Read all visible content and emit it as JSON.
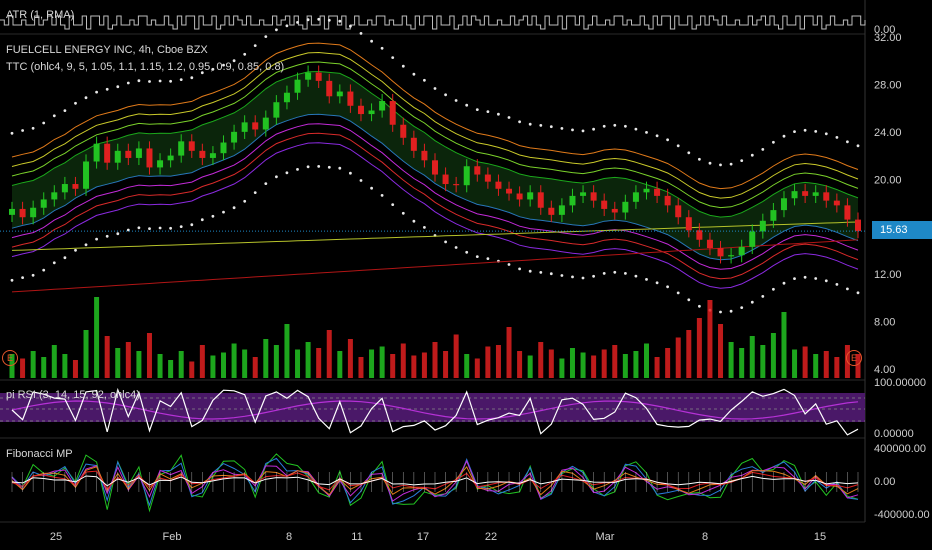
{
  "header": {
    "atr": "ATR (1, RMA)",
    "symbol": "FUELCELL ENERGY INC, 4h, Cboe BZX",
    "ttc": "TTC (ohlc4, 9, 5, 1.05, 1.1, 1.15, 1.2, 0.95, 0.9, 0.85, 0.8)",
    "rsi": "pi RSI (3, 14, 15, 92, ohlc4)",
    "fib": "Fibonacci MP",
    "earnings_badge": "E"
  },
  "price_tag": "15.63",
  "colors": {
    "up": "#22c322",
    "down": "#e02020",
    "price_tag": "#1e88c7",
    "rsi_band": "#4a1868",
    "rsi_line": "#ffffff",
    "ma_red": "#b01515",
    "ma_yellow": "#b5c22a"
  },
  "chart_data": [
    {
      "type": "line",
      "name": "ATR",
      "y_tick_labels": [
        "0.00"
      ],
      "note_shape": "stepped line near top of pane"
    },
    {
      "type": "candlestick",
      "title": "FUELCELL ENERGY INC, 4h, Cboe BZX",
      "x_tick_labels": [
        "25",
        "Feb",
        "8",
        "11",
        "17",
        "22",
        "Mar",
        "8",
        "15"
      ],
      "y_tick_labels": [
        "32.00",
        "28.00",
        "24.00",
        "20.00",
        "16.00",
        "12.00",
        "8.00",
        "4.00"
      ],
      "ylim": [
        3.5,
        32.5
      ],
      "last_price": 15.63,
      "close_path": [
        17.5,
        16.8,
        17.6,
        18.3,
        18.9,
        19.6,
        19.2,
        21.5,
        23.0,
        21.4,
        22.4,
        21.8,
        22.6,
        21.0,
        21.6,
        22.0,
        23.2,
        22.4,
        21.8,
        22.2,
        23.1,
        24.0,
        24.8,
        24.2,
        25.2,
        26.5,
        27.3,
        28.4,
        29.0,
        28.3,
        27.0,
        27.4,
        26.2,
        25.5,
        25.8,
        26.6,
        24.6,
        23.5,
        22.4,
        21.6,
        20.4,
        19.6,
        19.5,
        21.1,
        20.4,
        19.8,
        19.2,
        18.8,
        18.3,
        18.9,
        17.6,
        17.0,
        17.8,
        18.6,
        18.9,
        18.2,
        17.5,
        17.2,
        18.1,
        18.9,
        19.2,
        18.6,
        17.8,
        16.8,
        15.7,
        14.9,
        14.2,
        13.5,
        13.6,
        14.3,
        15.6,
        16.5,
        17.4,
        18.4,
        19.0,
        18.6,
        18.9,
        18.2,
        17.8,
        16.6,
        15.63
      ],
      "volume": [
        1.6,
        1.3,
        1.8,
        1.4,
        2.2,
        1.6,
        1.2,
        3.2,
        5.4,
        2.8,
        2.0,
        2.4,
        1.8,
        3.0,
        1.6,
        1.2,
        1.8,
        1.1,
        2.2,
        1.5,
        1.7,
        2.3,
        1.9,
        1.4,
        2.6,
        2.2,
        3.6,
        1.9,
        2.4,
        2.0,
        3.2,
        1.8,
        2.6,
        1.4,
        1.9,
        2.1,
        1.6,
        2.3,
        1.5,
        1.7,
        2.4,
        1.8,
        2.9,
        1.6,
        1.3,
        2.1,
        2.2,
        3.4,
        1.8,
        1.5,
        2.4,
        1.9,
        1.3,
        2.0,
        1.7,
        1.5,
        1.9,
        2.2,
        1.6,
        1.8,
        2.3,
        1.4,
        2.0,
        2.7,
        3.2,
        4.0,
        5.2,
        3.6,
        2.4,
        2.0,
        2.8,
        2.2,
        3.0,
        4.4,
        1.9,
        2.1,
        1.6,
        1.8,
        1.4,
        2.2,
        1.6
      ]
    },
    {
      "type": "line",
      "name": "pi RSI",
      "y_tick_labels": [
        "100.00000",
        "0.00000"
      ]
    },
    {
      "type": "line",
      "name": "Fibonacci MP",
      "y_tick_labels": [
        "400000.00",
        "0.00",
        "-400000.00"
      ]
    }
  ]
}
